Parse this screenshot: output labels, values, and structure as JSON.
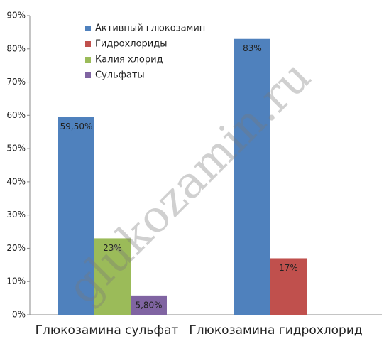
{
  "chart_data": {
    "type": "bar",
    "categories": [
      "Глюкозамина сульфат",
      "Глюкозамина гидрохлорид"
    ],
    "series": [
      {
        "name": "Активный глюкозамин",
        "color": "#4f81bd",
        "values": [
          59.5,
          83
        ],
        "value_labels": [
          "59,50%",
          "83%"
        ]
      },
      {
        "name": "Гидрохлориды",
        "color": "#c0504d",
        "values": [
          null,
          17
        ],
        "value_labels": [
          null,
          "17%"
        ]
      },
      {
        "name": "Калия хлорид",
        "color": "#9bbb59",
        "values": [
          23,
          null
        ],
        "value_labels": [
          "23%",
          null
        ]
      },
      {
        "name": "Сульфаты",
        "color": "#8064a2",
        "values": [
          5.8,
          null
        ],
        "value_labels": [
          "5,80%",
          null
        ]
      }
    ],
    "ylim": [
      0,
      90
    ],
    "yticks": [
      {
        "value": 0,
        "label": "0%"
      },
      {
        "value": 10,
        "label": "10%"
      },
      {
        "value": 20,
        "label": "20%"
      },
      {
        "value": 30,
        "label": "30%"
      },
      {
        "value": 40,
        "label": "40%"
      },
      {
        "value": 50,
        "label": "50%"
      },
      {
        "value": 60,
        "label": "60%"
      },
      {
        "value": 70,
        "label": "70%"
      },
      {
        "value": 80,
        "label": "80%"
      },
      {
        "value": 90,
        "label": "90%"
      }
    ],
    "legend": "upper-left",
    "grid": false,
    "watermark": "glukozamin.ru"
  }
}
